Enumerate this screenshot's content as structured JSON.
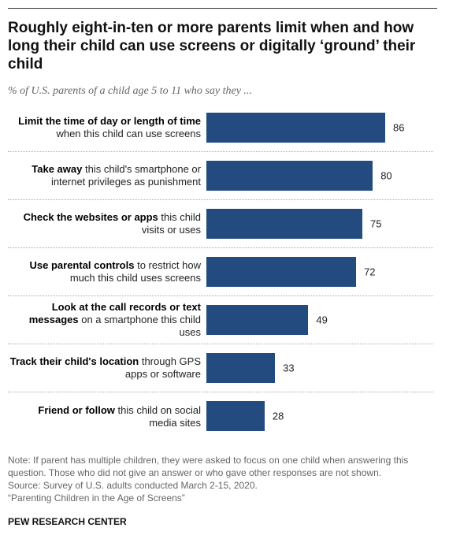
{
  "chart_data": {
    "type": "bar",
    "orientation": "horizontal",
    "title": "Roughly eight-in-ten or more parents limit when and how long their child can use screens or digitally ‘ground’ their child",
    "subtitle": "% of U.S. parents of a child age 5 to 11 who say they ...",
    "categories": [
      {
        "bold": "Limit the time of day or length of time",
        "text": "when this child can use screens"
      },
      {
        "bold": "Take away",
        "text": "this child's smartphone or internet privileges as punishment"
      },
      {
        "bold": "Check the websites or apps",
        "text": "this child visits or uses"
      },
      {
        "bold": "Use parental controls",
        "text": "to restrict how much this child uses screens"
      },
      {
        "bold": "Look at the call records or text messages",
        "text": "on a smartphone this child uses"
      },
      {
        "bold": "Track their child's location",
        "text": "through GPS apps or software"
      },
      {
        "bold": "Friend or follow",
        "text": "this child on social media sites"
      }
    ],
    "values": [
      86,
      80,
      75,
      72,
      49,
      33,
      28
    ],
    "color": "#234b7f",
    "notes": [
      "Note: If parent has multiple children, they were asked to focus on one child when answering this question. Those who did not give an answer or who gave other responses are not shown.",
      "Source: Survey of U.S. adults conducted March 2-15, 2020.",
      "“Parenting Children in the Age of Screens”"
    ],
    "source_org": "PEW RESEARCH CENTER"
  }
}
